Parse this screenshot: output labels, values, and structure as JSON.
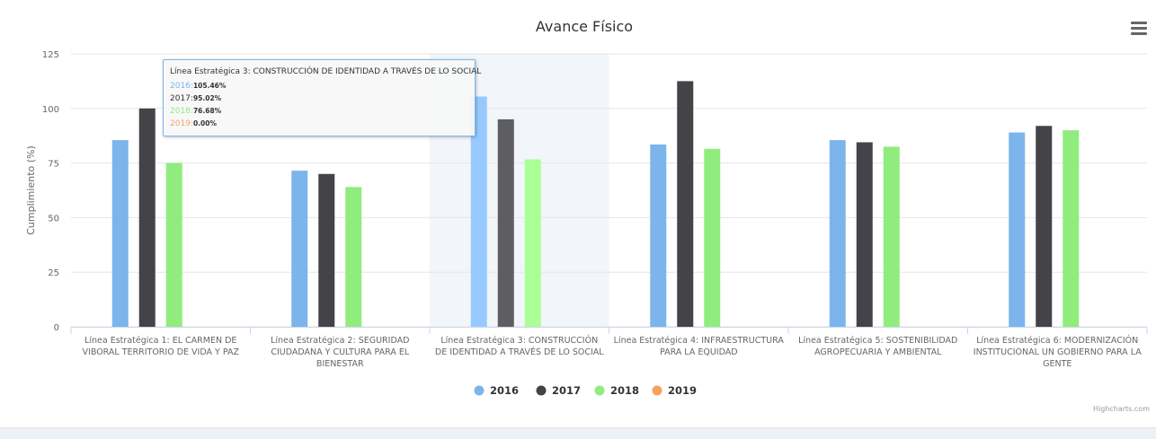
{
  "chart_data": {
    "type": "bar",
    "title": "Avance Físico",
    "ylabel": "Cumplimiento (%)",
    "ylim": [
      0,
      125
    ],
    "yticks": [
      0,
      25,
      50,
      75,
      100,
      125
    ],
    "grid": true,
    "legend_position": "bottom",
    "categories": [
      "Línea Estratégica 1: EL CARMEN DE VIBORAL TERRITORIO DE VIDA Y PAZ",
      "Línea Estratégica 2: SEGURIDAD CIUDADANA Y CULTURA PARA EL BIENESTAR",
      "Línea Estratégica 3: CONSTRUCCIÓN DE IDENTIDAD A TRAVÉS DE LO SOCIAL",
      "Línea Estratégica 4: INFRAESTRUCTURA PARA LA EQUIDAD",
      "Línea Estratégica 5: SOSTENIBILIDAD AGROPECUARIA Y AMBIENTAL",
      "Línea Estratégica 6: MODERNIZACIÓN INSTITUCIONAL UN GOBIERNO PARA LA GENTE"
    ],
    "category_lines": [
      [
        "Línea Estratégica 1: EL CARMEN DE",
        "VIBORAL TERRITORIO DE VIDA Y PAZ"
      ],
      [
        "Línea Estratégica 2: SEGURIDAD",
        "CIUDADANA Y CULTURA PARA EL",
        "BIENESTAR"
      ],
      [
        "Línea Estratégica 3: CONSTRUCCIÓN",
        "DE IDENTIDAD A TRAVÉS DE LO SOCIAL"
      ],
      [
        "Línea Estratégica 4: INFRAESTRUCTURA",
        "PARA LA EQUIDAD"
      ],
      [
        "Línea Estratégica 5: SOSTENIBILIDAD",
        "AGROPECUARIA Y AMBIENTAL"
      ],
      [
        "Línea Estratégica 6: MODERNIZACIÓN",
        "INSTITUCIONAL UN GOBIERNO PARA LA",
        "GENTE"
      ]
    ],
    "series": [
      {
        "name": "2016",
        "color": "#7cb5ec",
        "values": [
          85.5,
          71.5,
          105.46,
          83.5,
          85.5,
          89
        ]
      },
      {
        "name": "2017",
        "color": "#434348",
        "values": [
          100,
          70,
          95.02,
          112.5,
          84.5,
          92
        ]
      },
      {
        "name": "2018",
        "color": "#90ed7d",
        "values": [
          75,
          64,
          76.68,
          81.5,
          82.5,
          90
        ]
      },
      {
        "name": "2019",
        "color": "#f7a35c",
        "values": [
          0,
          0,
          0,
          0,
          0,
          0
        ]
      }
    ],
    "hovered_category": 2
  },
  "tooltip": {
    "header": "Línea Estratégica 3: CONSTRUCCIÓN DE IDENTIDAD A TRAVÉS DE LO SOCIAL",
    "rows": [
      {
        "label": "2016:",
        "value": "105.46%",
        "color": "#7cb5ec"
      },
      {
        "label": "2017:",
        "value": "95.02%",
        "color": "#333333"
      },
      {
        "label": "2018:",
        "value": "76.68%",
        "color": "#90ed7d"
      },
      {
        "label": "2019:",
        "value": "0.00%",
        "color": "#f7a35c"
      }
    ]
  },
  "credits": "Highcharts.com",
  "menu_icon": "hamburger-menu-icon"
}
